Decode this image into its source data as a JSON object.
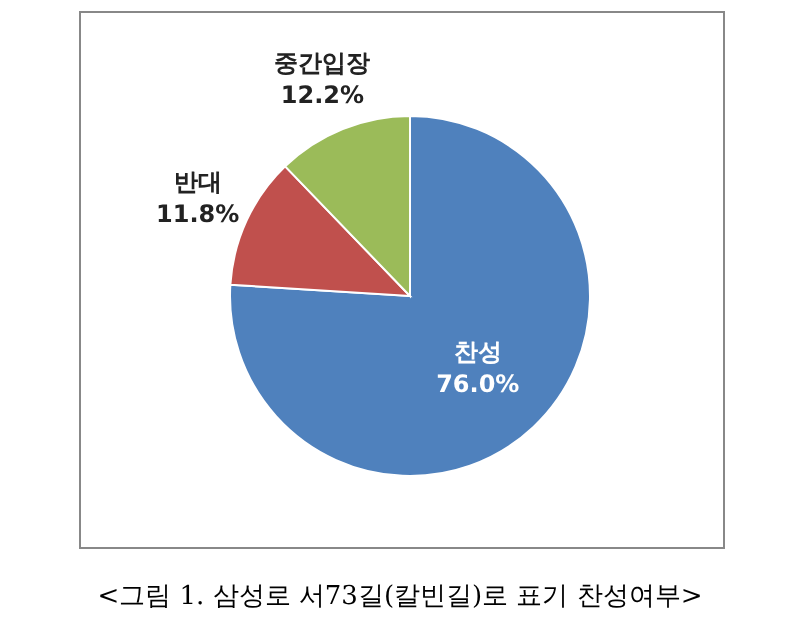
{
  "chart_data": {
    "type": "pie",
    "categories": [
      "찬성",
      "반대",
      "중간입장"
    ],
    "values": [
      76.0,
      11.8,
      12.2
    ],
    "colors": [
      "#4f81bd",
      "#c0504d",
      "#9bbb59"
    ],
    "value_labels": [
      "76.0%",
      "11.8%",
      "12.2%"
    ],
    "annotations": [
      "<그림 1. 삼성로 서73길(칼빈길)로 표기 찬성여부>"
    ]
  }
}
